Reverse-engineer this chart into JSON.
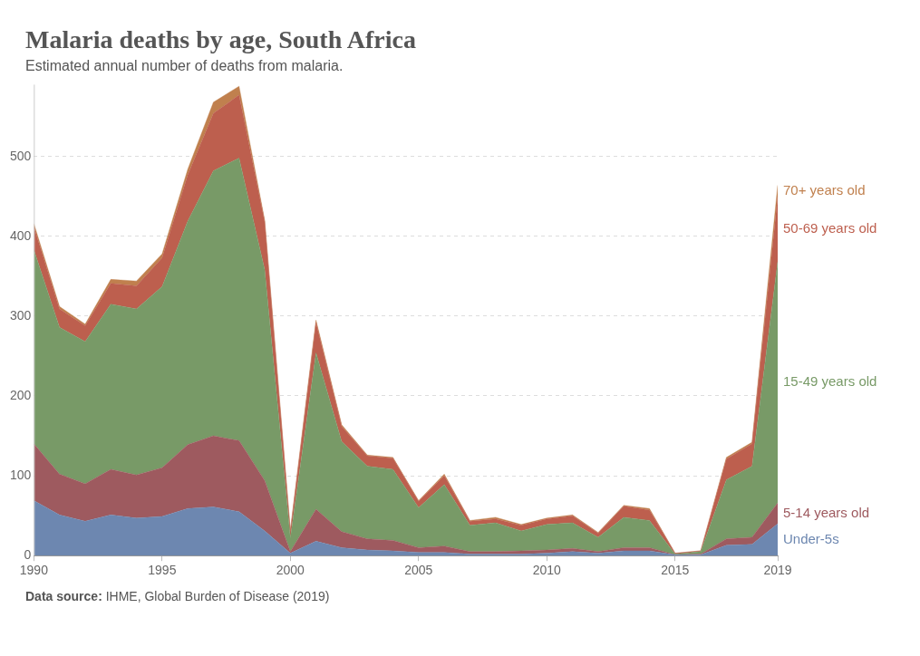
{
  "chart_data": {
    "type": "area",
    "stacked": true,
    "title": "Malaria deaths by age, South Africa",
    "subtitle": "Estimated annual number of deaths from malaria.",
    "x": [
      1990,
      1991,
      1992,
      1993,
      1994,
      1995,
      1996,
      1997,
      1998,
      1999,
      2000,
      2001,
      2002,
      2003,
      2004,
      2005,
      2006,
      2007,
      2008,
      2009,
      2010,
      2011,
      2012,
      2013,
      2014,
      2015,
      2016,
      2017,
      2018,
      2019
    ],
    "series": [
      {
        "name": "Under-5s",
        "color": "#6d87b0",
        "values": [
          69,
          51,
          43,
          51,
          47,
          49,
          59,
          61,
          55,
          31,
          3,
          18,
          10,
          7,
          6,
          4,
          4,
          2,
          2,
          2,
          3,
          5,
          3,
          6,
          6,
          1,
          1,
          13,
          14,
          40
        ]
      },
      {
        "name": "5-14 years old",
        "color": "#9e5a5f",
        "values": [
          71,
          51,
          47,
          57,
          54,
          61,
          80,
          89,
          89,
          63,
          2,
          40,
          20,
          14,
          13,
          6,
          8,
          3,
          3,
          4,
          4,
          4,
          2,
          4,
          4,
          0,
          1,
          8,
          9,
          26
        ]
      },
      {
        "name": "15-49 years old",
        "color": "#789a67",
        "values": [
          243,
          184,
          178,
          207,
          208,
          227,
          280,
          332,
          354,
          264,
          17,
          196,
          113,
          91,
          89,
          50,
          77,
          33,
          36,
          25,
          32,
          32,
          18,
          38,
          34,
          1,
          3,
          74,
          89,
          302
        ]
      },
      {
        "name": "50-69 years old",
        "color": "#bd5f4e",
        "values": [
          29,
          23,
          20,
          26,
          29,
          36,
          58,
          72,
          79,
          60,
          8,
          38,
          19,
          13,
          14,
          8,
          11,
          5,
          5,
          7,
          7,
          9,
          5,
          14,
          13,
          1,
          1,
          26,
          28,
          82
        ]
      },
      {
        "name": "70+ years old",
        "color": "#c0804e",
        "values": [
          4,
          3,
          2,
          5,
          6,
          5,
          7,
          14,
          11,
          2,
          2,
          3,
          2,
          1,
          1,
          1,
          2,
          1,
          2,
          1,
          1,
          1,
          1,
          1,
          2,
          0,
          0,
          2,
          2,
          14
        ]
      }
    ],
    "xlim": [
      1990,
      2019
    ],
    "xticks": [
      1990,
      1995,
      2000,
      2005,
      2010,
      2015,
      2019
    ],
    "ylim": [
      0,
      590
    ],
    "yticks": [
      0,
      100,
      200,
      300,
      400,
      500
    ],
    "grid": "y",
    "legend": "right",
    "annotations": [
      "Data source: IHME, Global Burden of Disease (2019)"
    ]
  }
}
